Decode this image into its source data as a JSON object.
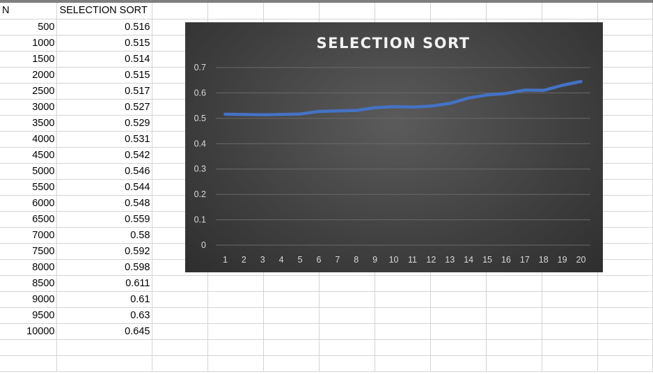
{
  "sheet": {
    "headers": [
      "N",
      "SELECTION SORT"
    ],
    "rows": [
      [
        "500",
        "0.516"
      ],
      [
        "1000",
        "0.515"
      ],
      [
        "1500",
        "0.514"
      ],
      [
        "2000",
        "0.515"
      ],
      [
        "2500",
        "0.517"
      ],
      [
        "3000",
        "0.527"
      ],
      [
        "3500",
        "0.529"
      ],
      [
        "4000",
        "0.531"
      ],
      [
        "4500",
        "0.542"
      ],
      [
        "5000",
        "0.546"
      ],
      [
        "5500",
        "0.544"
      ],
      [
        "6000",
        "0.548"
      ],
      [
        "6500",
        "0.559"
      ],
      [
        "7000",
        "0.58"
      ],
      [
        "7500",
        "0.592"
      ],
      [
        "8000",
        "0.598"
      ],
      [
        "8500",
        "0.611"
      ],
      [
        "9000",
        "0.61"
      ],
      [
        "9500",
        "0.63"
      ],
      [
        "10000",
        "0.645"
      ]
    ]
  },
  "colors": {
    "line": "#4472c4",
    "chart_text": "#d9d9d9",
    "title_text": "#f2f2f2",
    "gridline": "#6a6a6a"
  },
  "chart_data": {
    "type": "line",
    "title": "SELECTION SORT",
    "x": [
      "1",
      "2",
      "3",
      "4",
      "5",
      "6",
      "7",
      "8",
      "9",
      "10",
      "11",
      "12",
      "13",
      "14",
      "15",
      "16",
      "17",
      "18",
      "19",
      "20"
    ],
    "series": [
      {
        "values": [
          0.516,
          0.515,
          0.514,
          0.515,
          0.517,
          0.527,
          0.529,
          0.531,
          0.542,
          0.546,
          0.544,
          0.548,
          0.559,
          0.58,
          0.592,
          0.598,
          0.611,
          0.61,
          0.63,
          0.645
        ]
      }
    ],
    "yticks": [
      "0",
      "0.1",
      "0.2",
      "0.3",
      "0.4",
      "0.5",
      "0.6",
      "0.7"
    ],
    "ylim": [
      0,
      0.7
    ],
    "grid": true,
    "legend": "none"
  }
}
